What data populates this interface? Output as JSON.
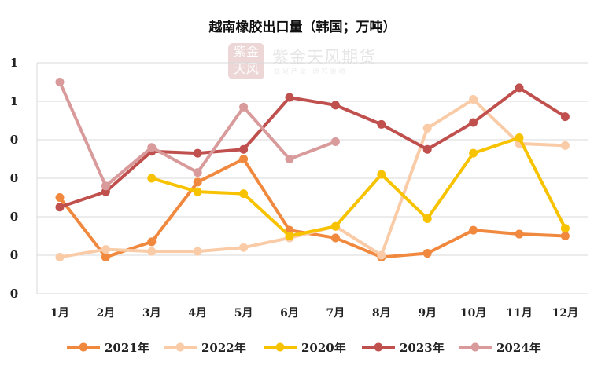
{
  "chart_data": {
    "type": "line",
    "title": "越南橡胶出口量（韩国；万吨）",
    "categories": [
      "1月",
      "2月",
      "3月",
      "4月",
      "5月",
      "6月",
      "7月",
      "8月",
      "9月",
      "10月",
      "11月",
      "12月"
    ],
    "y_tick_labels": [
      "0",
      "0",
      "0",
      "0",
      "0",
      "1",
      "1"
    ],
    "ylim": [
      0,
      1.2
    ],
    "grid": true,
    "legend_position": "bottom",
    "series": [
      {
        "name": "2021年",
        "color": "#f0883e",
        "values": [
          0.5,
          0.19,
          0.27,
          0.58,
          0.7,
          0.33,
          0.29,
          0.19,
          0.21,
          0.33,
          0.31,
          0.3
        ]
      },
      {
        "name": "2022年",
        "color": "#f9cba7",
        "values": [
          0.19,
          0.23,
          0.22,
          0.22,
          0.24,
          0.29,
          0.35,
          0.2,
          0.86,
          1.01,
          0.78,
          0.77
        ]
      },
      {
        "name": "2020年",
        "color": "#f7c300",
        "values": [
          null,
          null,
          0.6,
          0.53,
          0.52,
          0.3,
          0.35,
          0.62,
          0.39,
          0.73,
          0.81,
          0.34
        ]
      },
      {
        "name": "2023年",
        "color": "#c0504d",
        "values": [
          0.45,
          0.53,
          0.74,
          0.73,
          0.75,
          1.02,
          0.98,
          0.88,
          0.75,
          0.89,
          1.07,
          0.92
        ]
      },
      {
        "name": "2024年",
        "color": "#d89a9a",
        "values": [
          1.1,
          0.56,
          0.76,
          0.63,
          0.97,
          0.7,
          0.79,
          null,
          null,
          null,
          null,
          null
        ]
      }
    ]
  },
  "watermark": {
    "seal_text": "紫金天风",
    "brand": "紫金天风期货",
    "tagline": "立足产业 研究驱动"
  }
}
